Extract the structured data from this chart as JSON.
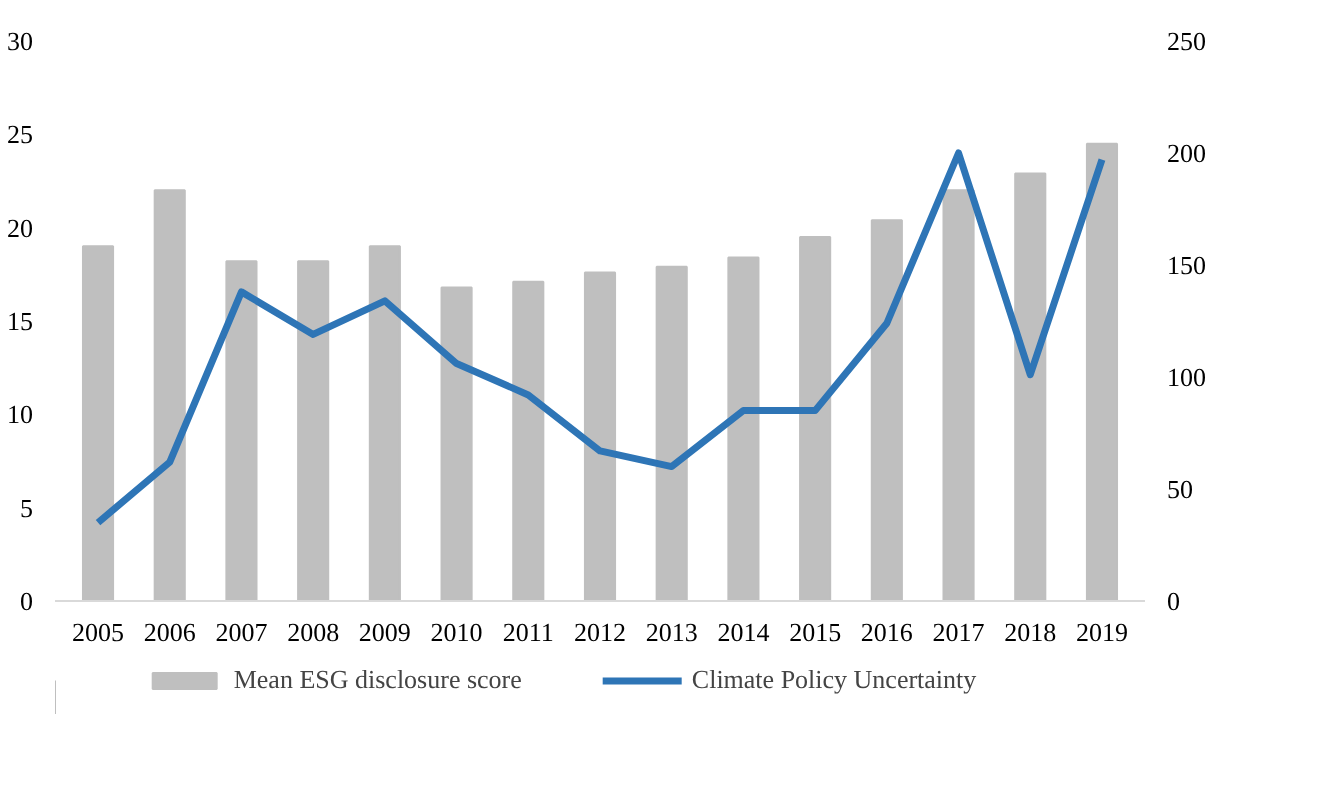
{
  "chart_data": {
    "type": "bar",
    "categories": [
      "2005",
      "2006",
      "2007",
      "2008",
      "2009",
      "2010",
      "2011",
      "2012",
      "2013",
      "2014",
      "2015",
      "2016",
      "2017",
      "2018",
      "2019"
    ],
    "series": [
      {
        "name": "Mean ESG disclosure score",
        "color": "#bfbfbf",
        "values": [
          19.0,
          22.0,
          18.2,
          18.2,
          19.0,
          16.8,
          17.1,
          17.6,
          17.9,
          18.4,
          19.5,
          20.4,
          22.0,
          22.9,
          24.5
        ]
      },
      {
        "name": "Climate Policy Uncertainty",
        "type": "line",
        "axis": "y2",
        "color": "#2e75b6",
        "values": [
          35,
          62,
          138,
          119,
          134,
          106,
          92,
          67,
          60,
          85,
          85,
          124,
          200,
          101,
          197
        ]
      }
    ],
    "ylim": [
      0,
      30
    ],
    "yticks": [
      0,
      5,
      10,
      15,
      20,
      25,
      30
    ],
    "y2lim": [
      0,
      250
    ],
    "y2ticks": [
      0,
      50,
      100,
      150,
      200,
      250
    ],
    "grid": false,
    "legend": "bottom",
    "marker": "none",
    "line_style": "solid"
  }
}
